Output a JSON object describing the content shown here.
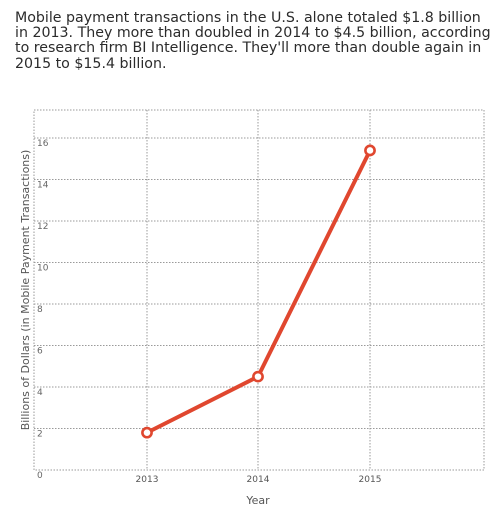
{
  "headline": "Mobile payment transactions in the U.S. alone totaled $1.8 billion in 2013. They more than doubled in 2014 to $4.5 billion, according to research firm BI Intelligence. They'll more than double again in 2015 to $15.4 billion.",
  "chart_data": {
    "type": "line",
    "x": [
      "2013",
      "2014",
      "2015"
    ],
    "values": [
      1.8,
      4.5,
      15.4
    ],
    "xlabel": "Year",
    "ylabel": "Billions of Dollars (in Mobile Payment Transactions)",
    "ylim": [
      0,
      16
    ],
    "yticks": [
      0,
      2,
      4,
      6,
      8,
      10,
      12,
      14,
      16
    ],
    "grid": true,
    "line_color": "#e0472f"
  }
}
